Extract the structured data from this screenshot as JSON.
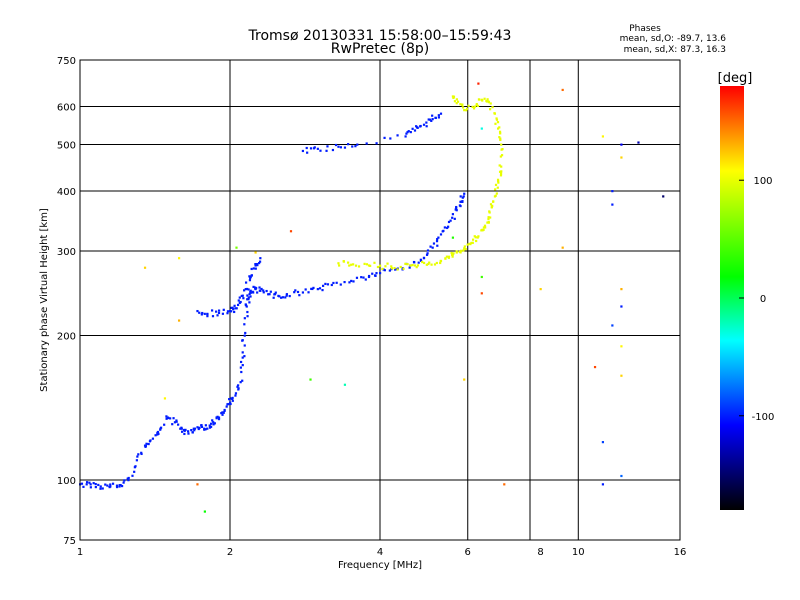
{
  "chart_data": {
    "type": "scatter",
    "title": "Tromsø 20130331 15:58:00–15:59:43",
    "subtitle": "RwPretec (8p)",
    "xlabel": "Frequency [MHz]",
    "ylabel": "Stationary phase Virtual Height [km]",
    "xscale": "log",
    "yscale": "log",
    "xlim": [
      1,
      16
    ],
    "ylim": [
      75,
      750
    ],
    "xticks": [
      1,
      2,
      4,
      6,
      10,
      16
    ],
    "xtick_labels": [
      "1",
      "2",
      "4",
      "6",
      "10",
      "16"
    ],
    "xgrid": [
      2,
      4,
      6,
      8,
      10
    ],
    "xminor_labels": [
      {
        "x": 8.4,
        "label": "8"
      }
    ],
    "yticks": [
      75,
      100,
      200,
      300,
      400,
      500,
      600,
      750
    ],
    "ytick_labels": [
      "75",
      "100",
      "200",
      "300",
      "400",
      "500",
      "600",
      "750"
    ],
    "ygrid": [
      100,
      200,
      300,
      400,
      500,
      600
    ],
    "grid": true,
    "stats": {
      "heading": "Phases",
      "line_o": "mean, sd,O: -89.7, 13.6",
      "line_x": "mean, sd,X:  87.3, 16.3"
    },
    "colorbar": {
      "label": "[deg]",
      "range": [
        -180,
        180
      ],
      "ticks": [
        100,
        0,
        -100
      ],
      "tick_labels": [
        "100",
        "0",
        "-100"
      ],
      "colors": [
        "#ff0000",
        "#ffff00",
        "#00ff00",
        "#00ffff",
        "#0000ff",
        "#000000"
      ]
    },
    "series": [
      {
        "kind": "O-trace-blue",
        "phase": -100,
        "x": [
          1.0,
          1.05,
          1.1,
          1.15,
          1.2,
          1.25,
          1.3,
          1.35,
          1.4,
          1.45,
          1.5,
          1.55,
          1.6,
          1.65,
          1.7,
          1.75,
          1.8,
          1.85,
          1.9,
          1.95,
          2.0,
          2.05,
          2.1,
          2.12,
          2.14,
          2.16,
          2.18,
          2.2,
          2.25,
          2.3,
          2.4,
          2.5,
          2.6,
          2.8,
          3.0,
          3.2,
          3.5,
          3.8,
          4.0,
          4.3,
          4.6,
          4.9,
          5.1,
          5.3,
          5.5,
          5.7,
          5.8,
          5.9,
          2.6,
          2.8,
          3.0,
          3.3,
          3.6,
          4.5,
          4.7,
          4.9,
          5.1,
          5.3,
          1.65,
          1.72,
          1.8,
          1.9,
          2.0,
          2.05,
          2.1,
          2.15,
          2.2,
          2.25,
          2.3
        ],
        "y": [
          98,
          98,
          97,
          97,
          97,
          100,
          110,
          118,
          122,
          128,
          135,
          132,
          128,
          125,
          128,
          130,
          128,
          132,
          135,
          140,
          145,
          150,
          160,
          180,
          200,
          230,
          240,
          248,
          250,
          248,
          244,
          242,
          244,
          246,
          250,
          255,
          260,
          265,
          270,
          275,
          280,
          290,
          305,
          325,
          345,
          365,
          380,
          395,
          480,
          485,
          490,
          495,
          500,
          520,
          535,
          550,
          565,
          580,
          235,
          225,
          222,
          223,
          225,
          228,
          235,
          250,
          265,
          280,
          290
        ]
      },
      {
        "kind": "X-trace-yellow",
        "phase": 100,
        "x": [
          3.3,
          3.5,
          3.8,
          4.1,
          4.4,
          4.7,
          5.0,
          5.3,
          5.5,
          5.7,
          5.9,
          6.1,
          6.3,
          6.5,
          6.6,
          6.7,
          6.8,
          6.9,
          7.0,
          7.0,
          6.9,
          6.8,
          6.6,
          6.4,
          6.2,
          5.9,
          5.7,
          5.6
        ],
        "y": [
          283,
          281,
          280,
          279,
          278,
          280,
          282,
          286,
          292,
          298,
          304,
          312,
          322,
          336,
          350,
          370,
          390,
          420,
          450,
          500,
          540,
          580,
          615,
          620,
          600,
          590,
          610,
          630
        ]
      },
      {
        "kind": "noise",
        "points": [
          {
            "x": 1.35,
            "y": 277,
            "phase": 120
          },
          {
            "x": 1.48,
            "y": 148,
            "phase": 110
          },
          {
            "x": 1.58,
            "y": 290,
            "phase": 110
          },
          {
            "x": 1.58,
            "y": 215,
            "phase": 130
          },
          {
            "x": 1.72,
            "y": 98,
            "phase": 150
          },
          {
            "x": 1.78,
            "y": 86,
            "phase": 20
          },
          {
            "x": 2.06,
            "y": 305,
            "phase": 60
          },
          {
            "x": 2.25,
            "y": 298,
            "phase": 120
          },
          {
            "x": 2.65,
            "y": 330,
            "phase": 160
          },
          {
            "x": 2.9,
            "y": 162,
            "phase": 40
          },
          {
            "x": 3.4,
            "y": 158,
            "phase": -20
          },
          {
            "x": 5.6,
            "y": 320,
            "phase": 30
          },
          {
            "x": 5.9,
            "y": 162,
            "phase": 120
          },
          {
            "x": 6.3,
            "y": 670,
            "phase": 170
          },
          {
            "x": 6.4,
            "y": 540,
            "phase": -30
          },
          {
            "x": 6.4,
            "y": 265,
            "phase": 40
          },
          {
            "x": 6.4,
            "y": 245,
            "phase": 160
          },
          {
            "x": 7.1,
            "y": 98,
            "phase": 150
          },
          {
            "x": 8.4,
            "y": 250,
            "phase": 120
          },
          {
            "x": 9.3,
            "y": 650,
            "phase": 150
          },
          {
            "x": 9.3,
            "y": 305,
            "phase": 130
          },
          {
            "x": 10.8,
            "y": 172,
            "phase": 160
          },
          {
            "x": 11.2,
            "y": 520,
            "phase": 110
          },
          {
            "x": 11.2,
            "y": 120,
            "phase": -90
          },
          {
            "x": 11.2,
            "y": 98,
            "phase": -100
          },
          {
            "x": 12.2,
            "y": 500,
            "phase": -110
          },
          {
            "x": 12.2,
            "y": 470,
            "phase": 120
          },
          {
            "x": 12.2,
            "y": 250,
            "phase": 130
          },
          {
            "x": 12.2,
            "y": 230,
            "phase": -100
          },
          {
            "x": 12.2,
            "y": 190,
            "phase": 110
          },
          {
            "x": 12.2,
            "y": 165,
            "phase": 120
          },
          {
            "x": 12.2,
            "y": 102,
            "phase": -80
          },
          {
            "x": 13.2,
            "y": 505,
            "phase": -130
          },
          {
            "x": 14.8,
            "y": 390,
            "phase": -150
          },
          {
            "x": 11.7,
            "y": 400,
            "phase": -100
          },
          {
            "x": 11.7,
            "y": 375,
            "phase": -100
          },
          {
            "x": 11.7,
            "y": 210,
            "phase": -90
          }
        ]
      }
    ]
  }
}
